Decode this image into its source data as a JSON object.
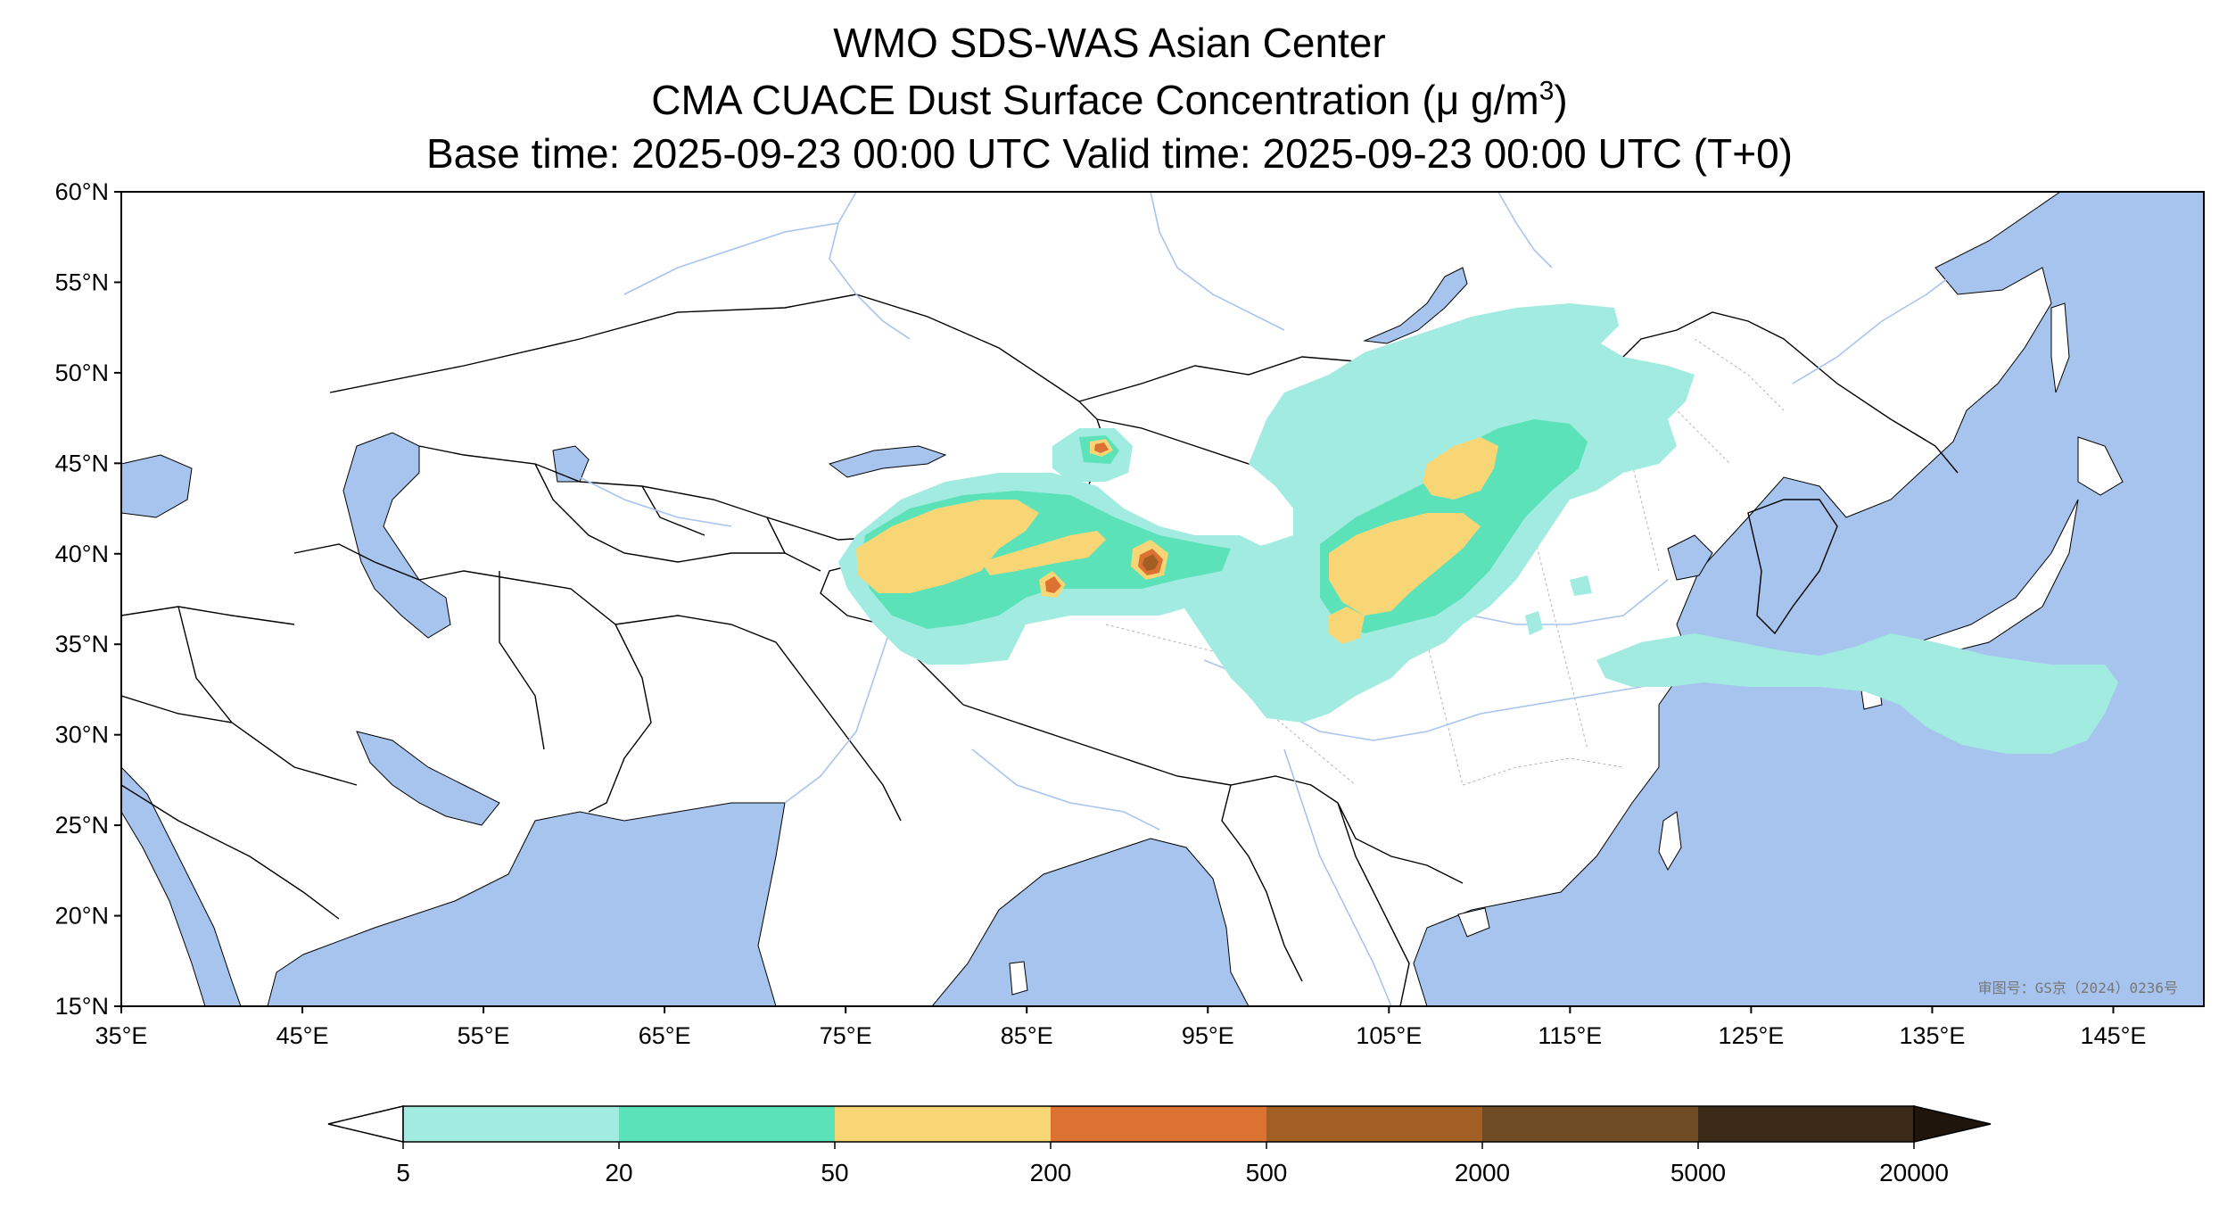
{
  "header": {
    "line1": "WMO SDS-WAS Asian Center",
    "line2_prefix": "CMA CUACE Dust Surface Concentration (",
    "line2_unit_base": "μ g/m",
    "line2_unit_sup": "3",
    "line2_suffix": ")",
    "line3": "Base time: 2025-09-23 00:00 UTC Valid time: 2025-09-23 00:00 UTC (T+0)"
  },
  "axes": {
    "x_ticks": [
      "35°E",
      "45°E",
      "55°E",
      "65°E",
      "75°E",
      "85°E",
      "95°E",
      "105°E",
      "115°E",
      "125°E",
      "135°E",
      "145°E"
    ],
    "y_ticks": [
      "60°N",
      "55°N",
      "50°N",
      "45°N",
      "40°N",
      "35°N",
      "30°N",
      "25°N",
      "20°N",
      "15°N"
    ],
    "lon_range": [
      35,
      150
    ],
    "lat_range": [
      15,
      60
    ]
  },
  "colorbar": {
    "labels": [
      "5",
      "20",
      "50",
      "200",
      "500",
      "2000",
      "5000",
      "20000"
    ],
    "colors": [
      "#a1ebe0",
      "#5ce2b8",
      "#f8d676",
      "#dc7232",
      "#a35e24",
      "#6e4b22",
      "#3b2a18"
    ],
    "under_color": "#ffffff",
    "over_color": "#1f150c"
  },
  "map": {
    "ocean_color": "#a7c4ee",
    "land_color": "#ffffff",
    "watermark": "审图号：GS京（2024）0236号"
  }
}
